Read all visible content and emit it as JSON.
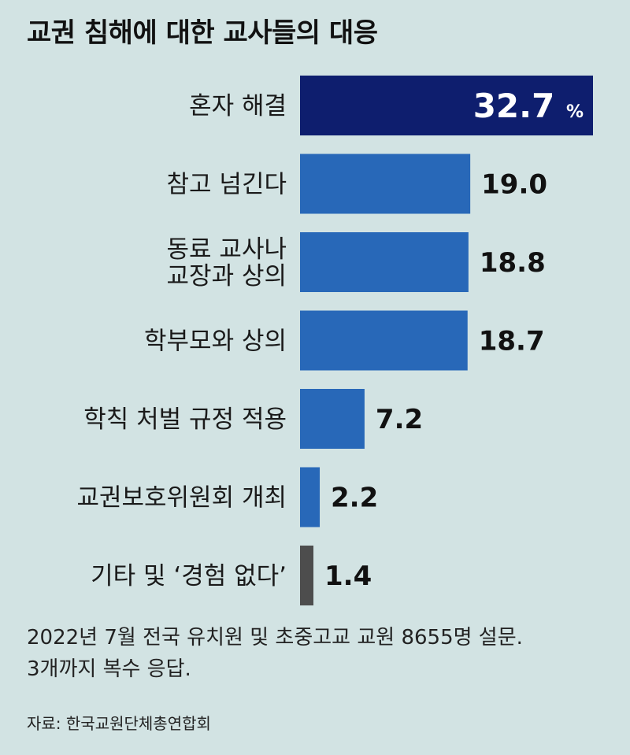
{
  "title": "교권 침해에 대한 교사들의 대응",
  "note_lines": [
    "2022년 7월 전국 유치원 및 초중고교 교원 8655명 설문.",
    "3개까지 복수 응답."
  ],
  "source": "자료: 한국교원단체총연합회",
  "colors": {
    "background": "#d2e3e3",
    "highlight_bar": "#0e1e6e",
    "bar": "#2868b8",
    "other_bar": "#4d4d4d"
  },
  "chart_data": {
    "type": "bar",
    "orientation": "horizontal",
    "title": "교권 침해에 대한 교사들의 대응",
    "unit": "%",
    "categories": [
      [
        "혼자 해결"
      ],
      [
        "참고 넘긴다"
      ],
      [
        "동료 교사나",
        "교장과 상의"
      ],
      [
        "학부모와 상의"
      ],
      [
        "학칙 처벌 규정 적용"
      ],
      [
        "교권보호위원회 개최"
      ],
      [
        "기타 및 ‘경험 없다’"
      ]
    ],
    "values": [
      32.7,
      19.0,
      18.8,
      18.7,
      7.2,
      2.2,
      1.4
    ],
    "value_labels": [
      "32.7",
      "19.0",
      "18.8",
      "18.7",
      "7.2",
      "2.2",
      "1.4"
    ],
    "xlim": [
      0,
      32.7
    ],
    "grid": false,
    "legend": "none"
  }
}
